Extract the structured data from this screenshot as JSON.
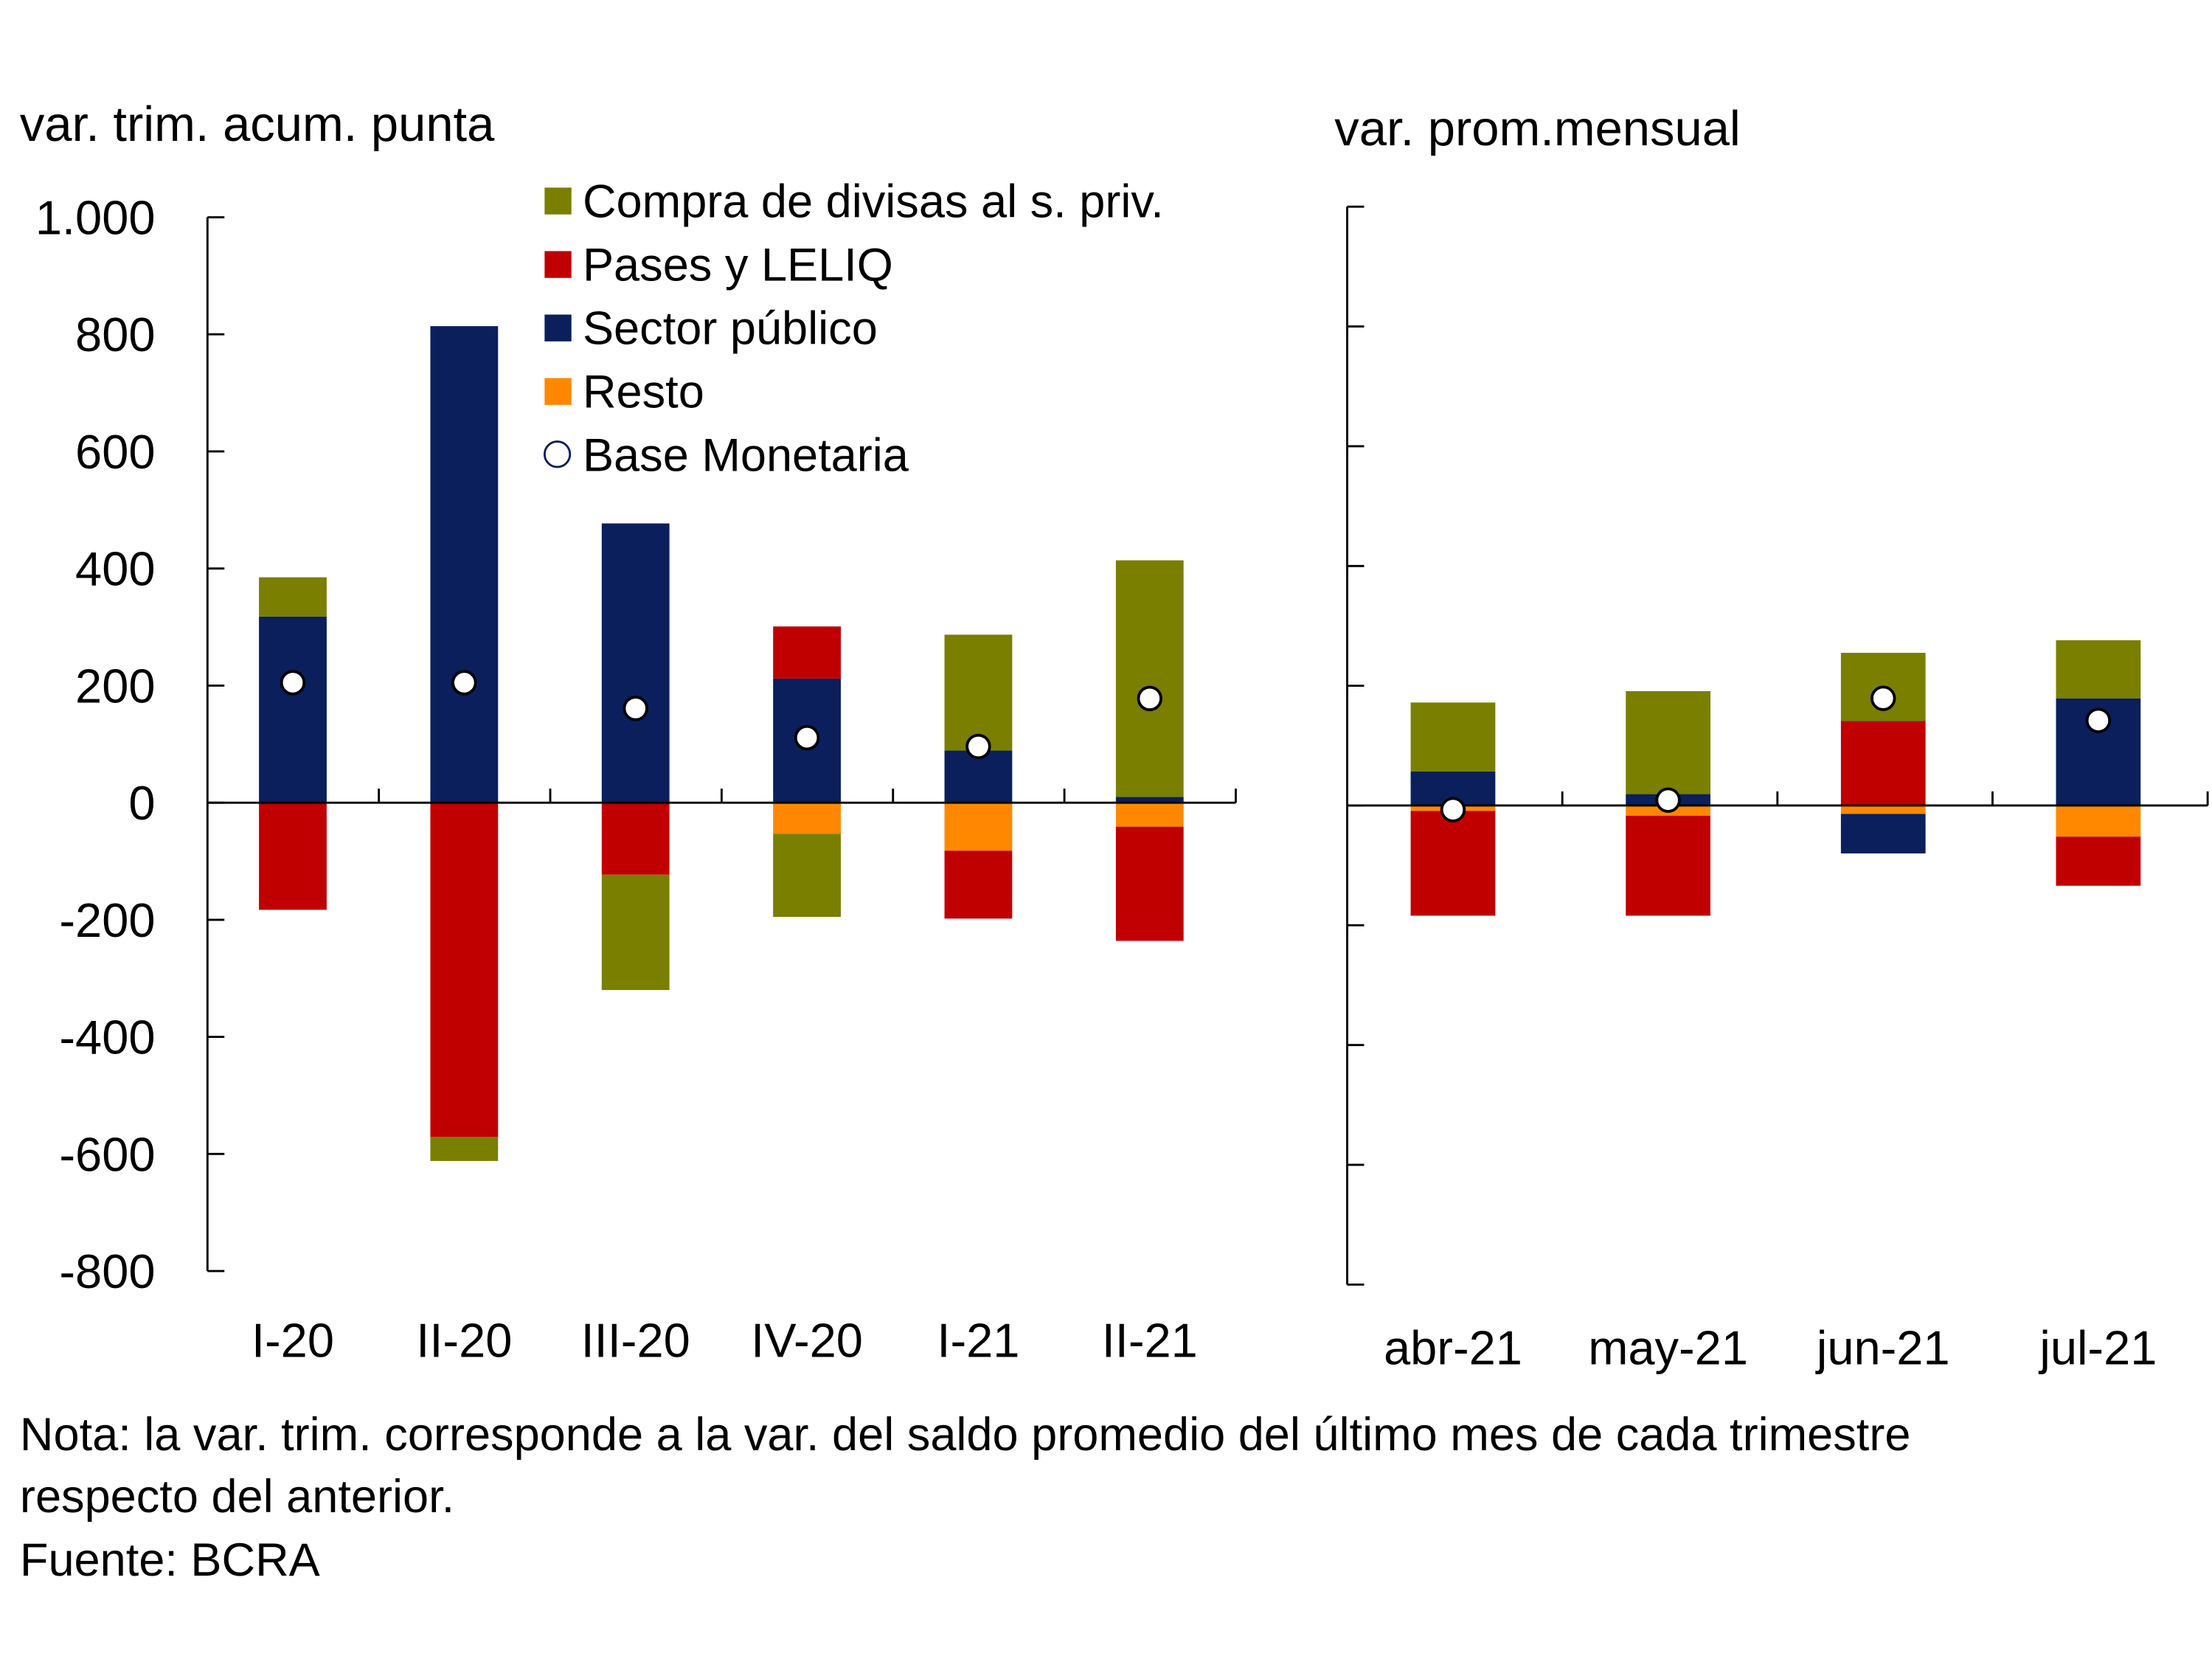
{
  "colors": {
    "compra": "#7a7f00",
    "pases": "#c00000",
    "publico": "#0a1f5c",
    "resto": "#ff8800",
    "base_stroke": "#0a1f5c"
  },
  "legend": [
    {
      "key": "compra",
      "label": "Compra de divisas al s. priv."
    },
    {
      "key": "pases",
      "label": "Pases y LELIQ"
    },
    {
      "key": "publico",
      "label": "Sector público"
    },
    {
      "key": "resto",
      "label": "Resto"
    },
    {
      "key": "base",
      "label": "Base Monetaria"
    }
  ],
  "notes": {
    "line1": "Nota: la var. trim. corresponde a la var. del saldo promedio del último mes de cada trimestre",
    "line2": "respecto del anterior.",
    "source": "Fuente: BCRA"
  },
  "chart_data": [
    {
      "type": "bar",
      "stacked": true,
      "title": "var. trim. acum. punta",
      "ylim": [
        -800,
        1000
      ],
      "yticks": [
        -800,
        -600,
        -400,
        -200,
        0,
        200,
        400,
        600,
        800,
        1000
      ],
      "ytick_labels": [
        "-800",
        "-600",
        "-400",
        "-200",
        "0",
        "200",
        "400",
        "600",
        "800",
        "1.000"
      ],
      "categories": [
        "I-20",
        "II-20",
        "III-20",
        "IV-20",
        "I-21",
        "II-21"
      ],
      "series": [
        {
          "key": "compra",
          "name": "Compra de divisas al s. priv.",
          "values": [
            67,
            -41,
            -197,
            -142,
            198,
            404
          ]
        },
        {
          "key": "pases",
          "name": "Pases y LELIQ",
          "values": [
            -183,
            -571,
            -123,
            89,
            -116,
            -195
          ]
        },
        {
          "key": "publico",
          "name": "Sector público",
          "values": [
            318,
            814,
            477,
            212,
            89,
            10
          ]
        },
        {
          "key": "resto",
          "name": "Resto",
          "values": [
            0,
            0,
            0,
            -53,
            -82,
            -41
          ]
        },
        {
          "key": "base",
          "name": "Base Monetaria",
          "type": "scatter",
          "values": [
            205,
            205,
            161,
            111,
            96,
            178
          ]
        }
      ]
    },
    {
      "type": "bar",
      "stacked": true,
      "title": "var. prom.mensual",
      "ylim": [
        -800,
        1000
      ],
      "yticks": [
        -800,
        -600,
        -400,
        -200,
        0,
        200,
        400,
        600,
        800,
        1000
      ],
      "categories": [
        "abr-21",
        "may-21",
        "jun-21",
        "jul-21"
      ],
      "series": [
        {
          "key": "compra",
          "name": "Compra de divisas al s. priv.",
          "values": [
            115,
            172,
            114,
            97
          ]
        },
        {
          "key": "pases",
          "name": "Pases y LELIQ",
          "values": [
            -175,
            -167,
            141,
            -82
          ]
        },
        {
          "key": "publico",
          "name": "Sector público",
          "values": [
            57,
            19,
            -66,
            179
          ]
        },
        {
          "key": "resto",
          "name": "Resto",
          "values": [
            -9,
            -17,
            -14,
            -52
          ]
        },
        {
          "key": "base",
          "name": "Base Monetaria",
          "type": "scatter",
          "values": [
            -7,
            9,
            179,
            142
          ]
        }
      ]
    }
  ]
}
